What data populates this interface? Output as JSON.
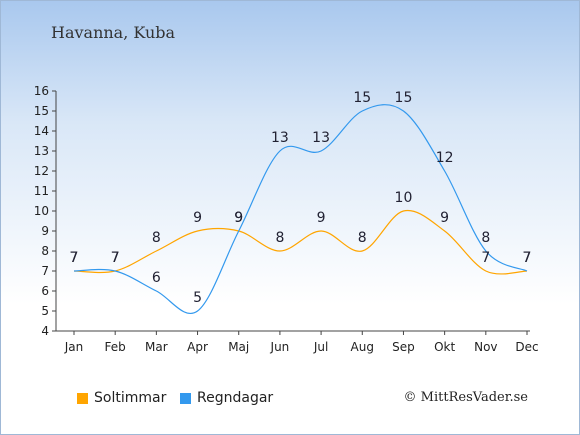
{
  "header": {
    "location": "Havanna, Kuba"
  },
  "footer": {
    "copyright": "© MittResVader.se"
  },
  "colors": {
    "sun": "#ffa500",
    "rain": "#3399ee",
    "axis": "#444444"
  },
  "chart_data": {
    "type": "line",
    "title": "Havanna, Kuba",
    "categories": [
      "Jan",
      "Feb",
      "Mar",
      "Apr",
      "Maj",
      "Jun",
      "Jul",
      "Aug",
      "Sep",
      "Okt",
      "Nov",
      "Dec"
    ],
    "ylim": [
      4,
      16
    ],
    "yticks": [
      4,
      5,
      6,
      7,
      8,
      9,
      10,
      11,
      12,
      13,
      14,
      15,
      16
    ],
    "grid": false,
    "legend_position": "bottom-left",
    "series": [
      {
        "name": "Soltimmar",
        "color": "#ffa500",
        "values": [
          7,
          7,
          8,
          9,
          9,
          8,
          9,
          8,
          10,
          9,
          7,
          7
        ]
      },
      {
        "name": "Regndagar",
        "color": "#3399ee",
        "values": [
          7,
          7,
          6,
          5,
          9,
          13,
          13,
          15,
          15,
          12,
          8,
          7
        ]
      }
    ]
  }
}
